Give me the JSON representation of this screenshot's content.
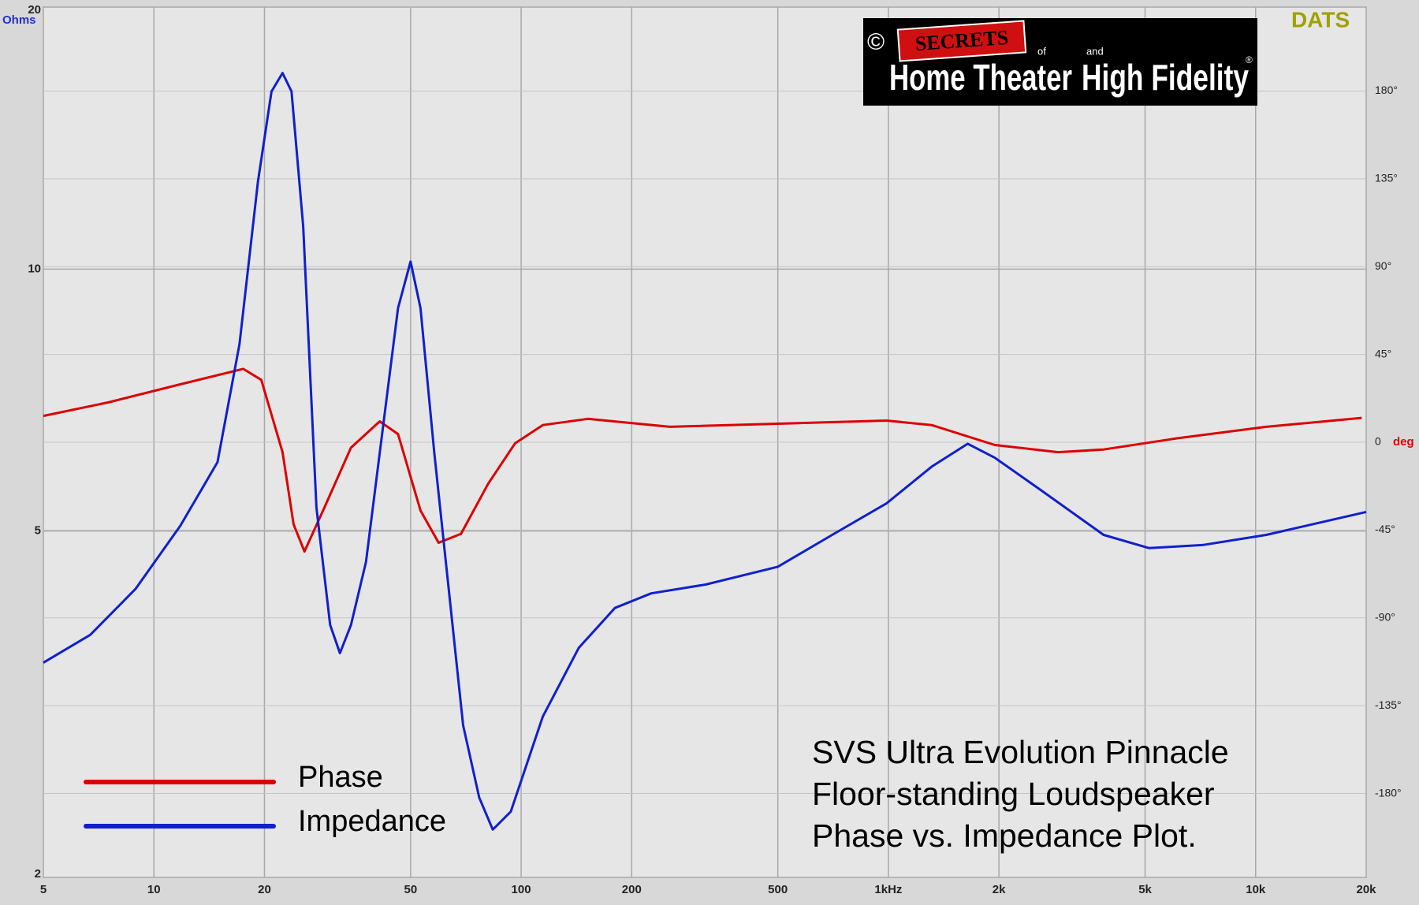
{
  "chart_data": {
    "type": "line",
    "x_scale": "log",
    "y_scale": "log",
    "xlim": [
      5,
      20000
    ],
    "ylim": [
      2,
      20
    ],
    "y2lim": [
      -223,
      223
    ],
    "xticks": [
      5,
      10,
      20,
      50,
      100,
      200,
      500,
      {
        "value": 1000,
        "label": "1kHz"
      },
      {
        "value": 2000,
        "label": "2k"
      },
      {
        "value": 5000,
        "label": "5k"
      },
      {
        "value": 10000,
        "label": "10k"
      },
      {
        "value": 20000,
        "label": "20k"
      }
    ],
    "yticks": [
      2,
      5,
      10,
      20
    ],
    "y2ticks": [
      {
        "value": 180,
        "label": "180°"
      },
      {
        "value": 135,
        "label": "135°"
      },
      {
        "value": 90,
        "label": "90°"
      },
      {
        "value": 45,
        "label": "45°"
      },
      0,
      {
        "value": -45,
        "label": "-45°"
      },
      {
        "value": -90,
        "label": "-90°"
      },
      {
        "value": -135,
        "label": "-135°"
      },
      {
        "value": -180,
        "label": "-180°"
      }
    ],
    "ylabel": "Ohms",
    "y2label": "deg",
    "grid": true,
    "series": [
      {
        "name": "Phase",
        "color": "#dd0000",
        "axis": "y2",
        "x": [
          5,
          7.5,
          11.8,
          17.5,
          19.6,
          22.4,
          24,
          25.7,
          29.2,
          34.4,
          41.2,
          46.2,
          53.2,
          59.6,
          68.6,
          81.3,
          96.3,
          114.5,
          152,
          254,
          988,
          1312,
          1950,
          2900,
          3855,
          6050,
          10690,
          19440
        ],
        "values": [
          13.5,
          20.4,
          29.7,
          37.6,
          32,
          -5.1,
          -42,
          -56,
          -33,
          -2.8,
          10.7,
          4.2,
          -35,
          -51.5,
          -46.9,
          -21.3,
          -0.5,
          8.8,
          12,
          7.9,
          11.1,
          8.8,
          -1.4,
          -5.1,
          -3.7,
          1.9,
          7.9,
          12.5
        ]
      },
      {
        "name": "Impedance",
        "color": "#1020cc",
        "x": [
          5,
          6.71,
          8.91,
          11.8,
          14.9,
          17.1,
          19.2,
          20.9,
          22.4,
          23.7,
          25.5,
          27.7,
          30.2,
          32.1,
          34.4,
          37.8,
          41.2,
          46.2,
          50,
          53.2,
          58,
          63.1,
          69.5,
          76.9,
          83.7,
          93.7,
          114.5,
          143.5,
          180,
          226,
          318,
          500,
          703,
          988,
          1312,
          1645,
          1950,
          2590,
          3855,
          5120,
          7190,
          10690,
          20000
        ],
        "values": [
          3.53,
          3.8,
          4.29,
          5.07,
          6.0,
          8.2,
          12.6,
          16.0,
          16.8,
          16.0,
          11.2,
          5.32,
          3.9,
          3.62,
          3.9,
          4.61,
          6.15,
          9.02,
          10.2,
          9.02,
          6.15,
          4.4,
          2.99,
          2.47,
          2.27,
          2.38,
          3.06,
          3.67,
          4.08,
          4.24,
          4.34,
          4.55,
          4.95,
          5.38,
          5.93,
          6.3,
          6.07,
          5.58,
          4.95,
          4.78,
          4.82,
          4.95,
          5.26
        ]
      }
    ],
    "badge": "DATS",
    "logo": {
      "copyright": "©",
      "secrets": "SECRETS",
      "of": "of",
      "and": "and",
      "home_theater": "Home Theater",
      "high_fidelity": "High Fidelity",
      "registered": "®"
    },
    "annotation": [
      "SVS Ultra Evolution Pinnacle",
      "Floor-standing Loudspeaker",
      "Phase vs. Impedance Plot."
    ]
  }
}
